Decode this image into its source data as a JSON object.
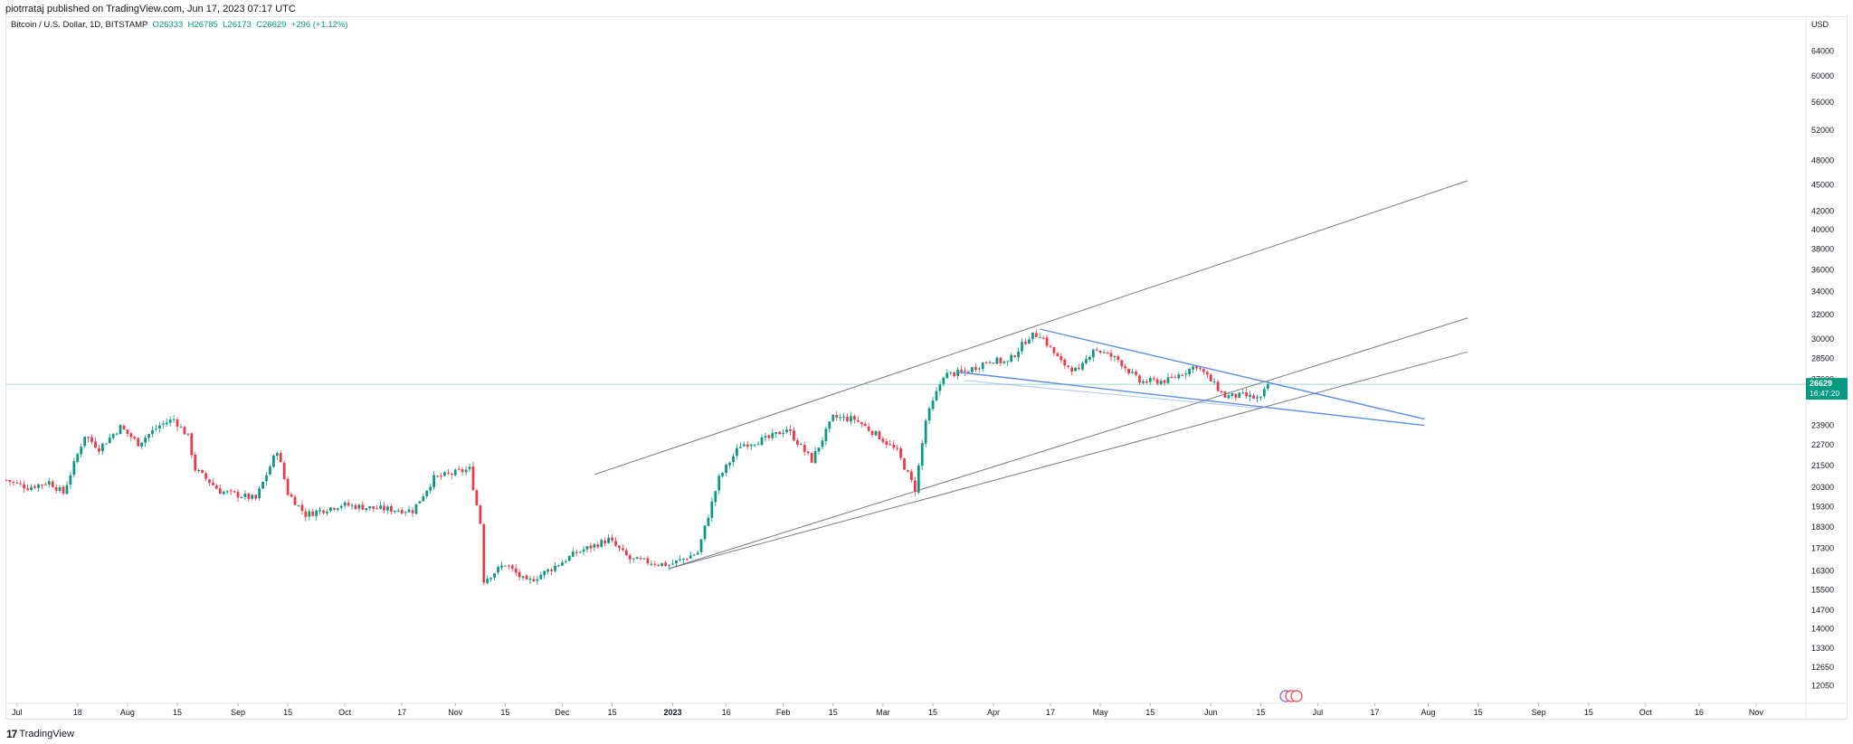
{
  "publish_line": "piotrrataj published on TradingView.com, Jun 17, 2023 07:17 UTC",
  "legend": {
    "symbol": "Bitcoin / U.S. Dollar, 1D, BITSTAMP",
    "o_label": "O",
    "open": "26333",
    "h_label": "H",
    "high": "26785",
    "l_label": "L",
    "low": "26173",
    "c_label": "C",
    "close": "26629",
    "change": "+296 (+1.12%)"
  },
  "footer": {
    "brand": "TradingView"
  },
  "colors": {
    "up": "#089981",
    "down": "#f23645",
    "trend_gray": "#787b86",
    "wedge_blue": "#5b8def",
    "price_line": "#9fd8cf"
  },
  "chart_data": {
    "type": "candlestick",
    "symbol": "BTCUSD",
    "exchange": "BITSTAMP",
    "interval": "1D",
    "currency": "USD",
    "scale": "log",
    "x_range": [
      "2022-06-28",
      "2023-11-15"
    ],
    "y_range": [
      11500,
      70000
    ],
    "y_ticks": [
      64000,
      60000,
      56000,
      52000,
      48000,
      45000,
      42000,
      40000,
      38000,
      36000,
      34000,
      32000,
      30000,
      28500,
      27000,
      25900,
      23900,
      22700,
      21500,
      20300,
      19300,
      18300,
      17300,
      16300,
      15500,
      14700,
      14000,
      13300,
      12650,
      12050
    ],
    "x_ticks": [
      {
        "date": "2022-07-01",
        "label": "Jul"
      },
      {
        "date": "2022-07-18",
        "label": "18"
      },
      {
        "date": "2022-08-01",
        "label": "Aug"
      },
      {
        "date": "2022-08-15",
        "label": "15"
      },
      {
        "date": "2022-09-01",
        "label": "Sep"
      },
      {
        "date": "2022-09-15",
        "label": "15"
      },
      {
        "date": "2022-10-01",
        "label": "Oct"
      },
      {
        "date": "2022-10-17",
        "label": "17"
      },
      {
        "date": "2022-11-01",
        "label": "Nov"
      },
      {
        "date": "2022-11-15",
        "label": "15"
      },
      {
        "date": "2022-12-01",
        "label": "Dec"
      },
      {
        "date": "2022-12-15",
        "label": "15"
      },
      {
        "date": "2023-01-01",
        "label": "2023"
      },
      {
        "date": "2023-01-16",
        "label": "16"
      },
      {
        "date": "2023-02-01",
        "label": "Feb"
      },
      {
        "date": "2023-02-15",
        "label": "15"
      },
      {
        "date": "2023-03-01",
        "label": "Mar"
      },
      {
        "date": "2023-03-15",
        "label": "15"
      },
      {
        "date": "2023-04-01",
        "label": "Apr"
      },
      {
        "date": "2023-04-17",
        "label": "17"
      },
      {
        "date": "2023-05-01",
        "label": "May"
      },
      {
        "date": "2023-05-15",
        "label": "15"
      },
      {
        "date": "2023-06-01",
        "label": "Jun"
      },
      {
        "date": "2023-06-15",
        "label": "15"
      },
      {
        "date": "2023-07-01",
        "label": "Jul"
      },
      {
        "date": "2023-07-17",
        "label": "17"
      },
      {
        "date": "2023-08-01",
        "label": "Aug"
      },
      {
        "date": "2023-08-15",
        "label": "15"
      },
      {
        "date": "2023-09-01",
        "label": "Sep"
      },
      {
        "date": "2023-09-15",
        "label": "15"
      },
      {
        "date": "2023-10-01",
        "label": "Oct"
      },
      {
        "date": "2023-10-16",
        "label": "16"
      },
      {
        "date": "2023-11-01",
        "label": "Nov"
      }
    ],
    "price_path": [
      [
        "2022-06-28",
        20700
      ],
      [
        "2022-07-04",
        20300
      ],
      [
        "2022-07-10",
        20600
      ],
      [
        "2022-07-14",
        20000
      ],
      [
        "2022-07-20",
        23300
      ],
      [
        "2022-07-24",
        22500
      ],
      [
        "2022-07-30",
        23800
      ],
      [
        "2022-08-04",
        22800
      ],
      [
        "2022-08-10",
        23900
      ],
      [
        "2022-08-14",
        24300
      ],
      [
        "2022-08-18",
        23200
      ],
      [
        "2022-08-20",
        21300
      ],
      [
        "2022-08-27",
        20100
      ],
      [
        "2022-09-06",
        19700
      ],
      [
        "2022-09-12",
        22400
      ],
      [
        "2022-09-15",
        20000
      ],
      [
        "2022-09-20",
        18900
      ],
      [
        "2022-09-30",
        19400
      ],
      [
        "2022-10-10",
        19200
      ],
      [
        "2022-10-20",
        19100
      ],
      [
        "2022-10-26",
        20800
      ],
      [
        "2022-11-05",
        21300
      ],
      [
        "2022-11-08",
        18500
      ],
      [
        "2022-11-09",
        15900
      ],
      [
        "2022-11-15",
        16600
      ],
      [
        "2022-11-21",
        15800
      ],
      [
        "2022-11-28",
        16400
      ],
      [
        "2022-12-05",
        17100
      ],
      [
        "2022-12-14",
        17700
      ],
      [
        "2022-12-20",
        16800
      ],
      [
        "2022-12-31",
        16550
      ],
      [
        "2023-01-08",
        17100
      ],
      [
        "2023-01-14",
        20800
      ],
      [
        "2023-01-20",
        22700
      ],
      [
        "2023-01-28",
        23100
      ],
      [
        "2023-02-02",
        23700
      ],
      [
        "2023-02-09",
        21800
      ],
      [
        "2023-02-15",
        24400
      ],
      [
        "2023-02-21",
        24300
      ],
      [
        "2023-02-28",
        23200
      ],
      [
        "2023-03-05",
        22300
      ],
      [
        "2023-03-10",
        20200
      ],
      [
        "2023-03-13",
        24200
      ],
      [
        "2023-03-18",
        27300
      ],
      [
        "2023-03-24",
        27500
      ],
      [
        "2023-03-31",
        28400
      ],
      [
        "2023-04-05",
        28200
      ],
      [
        "2023-04-11",
        30200
      ],
      [
        "2023-04-14",
        30400
      ],
      [
        "2023-04-20",
        28200
      ],
      [
        "2023-04-25",
        27500
      ],
      [
        "2023-04-29",
        29300
      ],
      [
        "2023-05-06",
        28400
      ],
      [
        "2023-05-12",
        26800
      ],
      [
        "2023-05-20",
        26900
      ],
      [
        "2023-05-28",
        28000
      ],
      [
        "2023-06-05",
        25800
      ],
      [
        "2023-06-10",
        25850
      ],
      [
        "2023-06-15",
        25600
      ],
      [
        "2023-06-17",
        26629
      ]
    ],
    "drawings": {
      "channel_upper": [
        [
          "2022-12-10",
          21000
        ],
        [
          "2023-08-12",
          45500
        ]
      ],
      "channel_lower_1": [
        [
          "2022-12-31",
          16400
        ],
        [
          "2023-08-12",
          31700
        ]
      ],
      "channel_lower_2": [
        [
          "2022-12-31",
          16400
        ],
        [
          "2023-08-12",
          29000
        ]
      ],
      "wedge_upper": [
        [
          "2023-04-14",
          30800
        ],
        [
          "2023-07-31",
          24300
        ]
      ],
      "wedge_lower": [
        [
          "2023-03-22",
          27500
        ],
        [
          "2023-07-31",
          23900
        ]
      ],
      "wedge_inner": [
        [
          "2023-03-24",
          26900
        ],
        [
          "2023-06-15",
          25000
        ]
      ]
    },
    "last_price": {
      "value": 26629,
      "label": "26629",
      "countdown": "16:47:20"
    }
  }
}
